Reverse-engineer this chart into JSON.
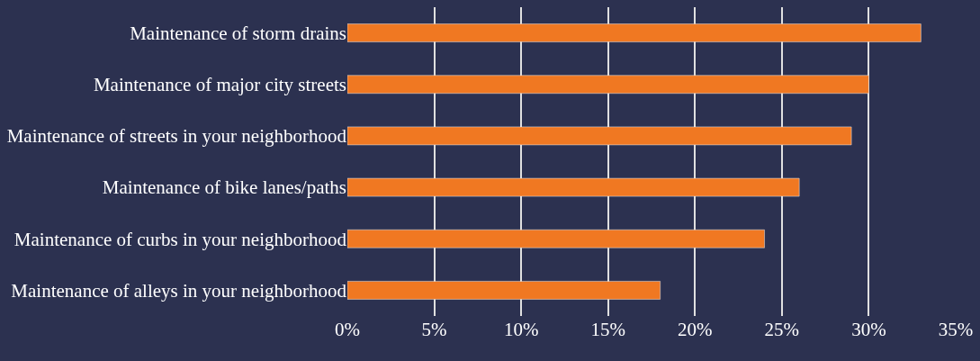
{
  "chart_data": {
    "type": "bar",
    "orientation": "horizontal",
    "categories": [
      "Maintenance of storm drains",
      "Maintenance of major city streets",
      "Maintenance of streets in your neighborhood",
      "Maintenance of bike lanes/paths",
      "Maintenance of curbs in your neighborhood",
      "Maintenance of alleys in your neighborhood"
    ],
    "values": [
      33,
      30,
      29,
      26,
      24,
      18
    ],
    "color": "#f07822",
    "xlim": [
      0,
      35
    ],
    "xticks": [
      {
        "value": 0,
        "label": "0%"
      },
      {
        "value": 5,
        "label": "5%"
      },
      {
        "value": 10,
        "label": "10%"
      },
      {
        "value": 15,
        "label": "15%"
      },
      {
        "value": 20,
        "label": "20%"
      },
      {
        "value": 25,
        "label": "25%"
      },
      {
        "value": 30,
        "label": "30%"
      },
      {
        "value": 35,
        "label": "35%"
      }
    ],
    "grid": "x",
    "legend": false
  }
}
